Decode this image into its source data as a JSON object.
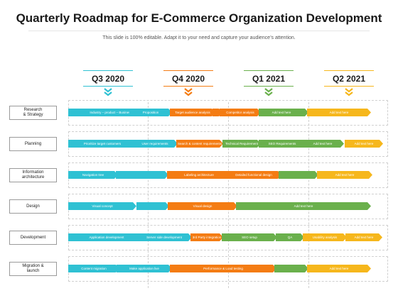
{
  "header": {
    "title": "Quarterly Roadmap for E-Commerce Organization Development",
    "subtitle": "This slide is 100% editable. Adapt it to your need and capture your audience’s attention."
  },
  "colors": {
    "teal": "#2fc1d3",
    "orange": "#f47c13",
    "green": "#6ab04c",
    "yellow": "#f6b71c"
  },
  "quarters": [
    {
      "label": "Q3 2020",
      "color": "#2fc1d3"
    },
    {
      "label": "Q4 2020",
      "color": "#f47c13"
    },
    {
      "label": "Q1 2021",
      "color": "#6ab04c"
    },
    {
      "label": "Q2 2021",
      "color": "#f6b71c"
    }
  ],
  "rows": [
    {
      "label": "Research\n& Strategy",
      "bars": [
        {
          "text": "Industry – product – Business",
          "color": "teal"
        },
        {
          "text": "Proposition",
          "color": "teal"
        },
        {
          "text": "Target audience analysis",
          "color": "orange"
        },
        {
          "text": "",
          "color": "orange"
        },
        {
          "text": "Competitor analysis",
          "color": "orange"
        },
        {
          "text": "Add text here",
          "color": "green"
        },
        {
          "text": "",
          "color": "green"
        },
        {
          "text": "Add text here",
          "color": "yellow"
        }
      ]
    },
    {
      "label": "Planning",
      "bars": [
        {
          "text": "Prioritize target customers",
          "color": "teal"
        },
        {
          "text": "User requirements",
          "color": "teal"
        },
        {
          "text": "Search & content requirements",
          "color": "orange"
        },
        {
          "text": "Technical Requirement",
          "color": "green"
        },
        {
          "text": "SEO Requirements",
          "color": "green"
        },
        {
          "text": "Add text here",
          "color": "green"
        },
        {
          "text": "Add text here",
          "color": "yellow"
        }
      ]
    },
    {
      "label": "Information\narchitecture",
      "bars": [
        {
          "text": "Navigation tree",
          "color": "teal"
        },
        {
          "text": "",
          "color": "teal"
        },
        {
          "text": "Labeling architecture",
          "color": "orange"
        },
        {
          "text": "Detailed functional design",
          "color": "orange"
        },
        {
          "text": "",
          "color": "green"
        },
        {
          "text": "Add text here",
          "color": "yellow"
        }
      ]
    },
    {
      "label": "Design",
      "bars": [
        {
          "text": "Visual concept",
          "color": "teal"
        },
        {
          "text": "",
          "color": "teal"
        },
        {
          "text": "Visual design",
          "color": "orange"
        },
        {
          "text": "Add text here",
          "color": "green"
        }
      ]
    },
    {
      "label": "Development",
      "bars": [
        {
          "text": "Application development",
          "color": "teal"
        },
        {
          "text": "Server side development",
          "color": "teal"
        },
        {
          "text": "3rd Party integration",
          "color": "orange"
        },
        {
          "text": "SEO setup",
          "color": "green"
        },
        {
          "text": "QA",
          "color": "green"
        },
        {
          "text": "Usability analysis",
          "color": "yellow"
        },
        {
          "text": "Add text here",
          "color": "yellow"
        }
      ]
    },
    {
      "label": "Migration &\nlaunch",
      "bars": [
        {
          "text": "Content migration",
          "color": "teal"
        },
        {
          "text": "Make application live",
          "color": "teal"
        },
        {
          "text": "Performance & Load testing",
          "color": "orange"
        },
        {
          "text": "",
          "color": "green"
        },
        {
          "text": "Add text here",
          "color": "yellow"
        }
      ]
    }
  ]
}
